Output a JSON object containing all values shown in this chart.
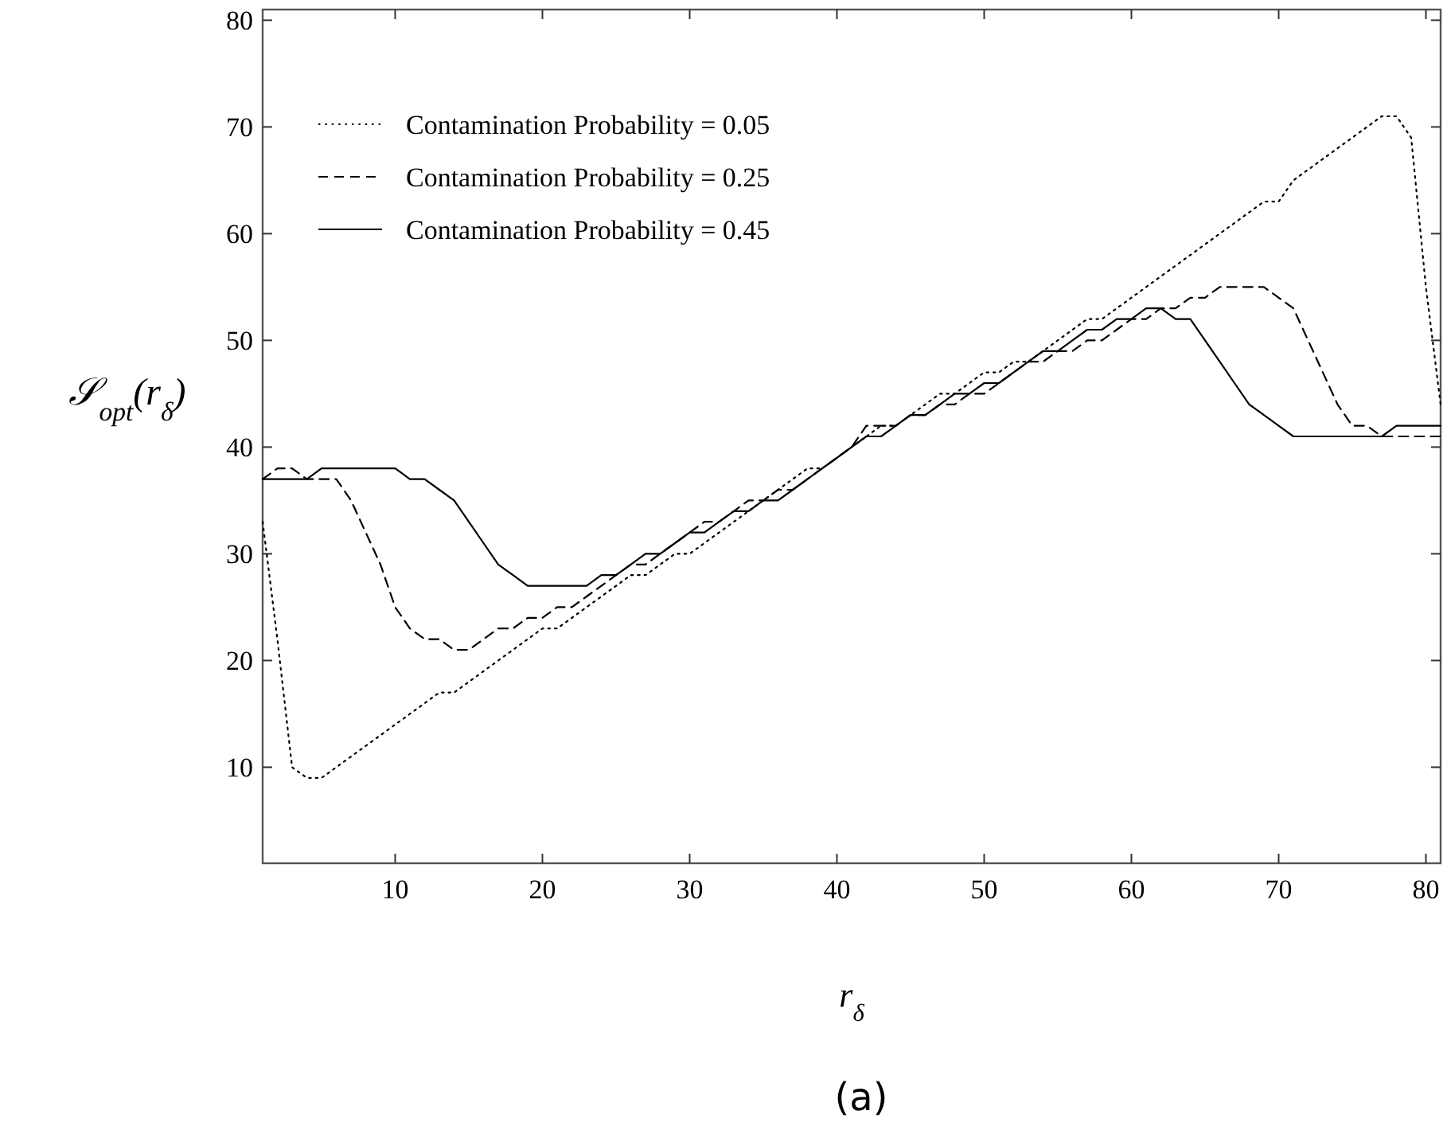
{
  "chart_data": {
    "type": "line",
    "xlabel": "r$_{δ}$",
    "ylabel": "𝒮$_{opt}$(r$_{δ}$)",
    "annotations": [
      "(a)"
    ],
    "x": [
      1,
      2,
      3,
      4,
      5,
      6,
      7,
      8,
      9,
      10,
      11,
      12,
      13,
      14,
      15,
      16,
      17,
      18,
      19,
      20,
      21,
      22,
      23,
      24,
      25,
      26,
      27,
      28,
      29,
      30,
      31,
      32,
      33,
      34,
      35,
      36,
      37,
      38,
      39,
      40,
      41,
      42,
      43,
      44,
      45,
      46,
      47,
      48,
      49,
      50,
      51,
      52,
      53,
      54,
      55,
      56,
      57,
      58,
      59,
      60,
      61,
      62,
      63,
      64,
      65,
      66,
      67,
      68,
      69,
      70,
      71,
      72,
      73,
      74,
      75,
      76,
      77,
      78,
      79,
      80,
      81
    ],
    "xlim": [
      1,
      81
    ],
    "xticks": [
      10,
      20,
      30,
      40,
      50,
      60,
      70,
      80
    ],
    "ylim": [
      1,
      81
    ],
    "yticks": [
      10,
      20,
      30,
      40,
      50,
      60,
      70,
      80
    ],
    "grid": false,
    "legend": "top left",
    "marker": "none",
    "series": [
      {
        "name": "Contamination Probability = 0.05",
        "color": "#000000",
        "line_style": "dotted",
        "values": [
          33,
          22,
          10,
          9,
          9,
          10,
          11,
          12,
          13,
          14,
          15,
          16,
          17,
          17,
          18,
          19,
          20,
          21,
          22,
          23,
          23,
          24,
          25,
          26,
          27,
          28,
          28,
          29,
          30,
          30,
          31,
          32,
          33,
          34,
          35,
          36,
          37,
          38,
          38,
          39,
          40,
          41,
          42,
          42,
          43,
          44,
          45,
          45,
          46,
          47,
          47,
          48,
          48,
          49,
          50,
          51,
          52,
          52,
          53,
          54,
          55,
          56,
          57,
          58,
          59,
          60,
          61,
          62,
          63,
          63,
          65,
          66,
          67,
          68,
          69,
          70,
          71,
          71,
          69,
          55,
          44
        ]
      },
      {
        "name": "Contamination Probability = 0.25",
        "color": "#000000",
        "line_style": "dashed",
        "values": [
          37,
          38,
          38,
          37,
          37,
          37,
          35,
          32,
          29,
          25,
          23,
          22,
          22,
          21,
          21,
          22,
          23,
          23,
          24,
          24,
          25,
          25,
          26,
          27,
          28,
          29,
          29,
          30,
          31,
          32,
          33,
          33,
          34,
          35,
          35,
          36,
          36,
          37,
          38,
          39,
          40,
          42,
          42,
          42,
          43,
          43,
          44,
          44,
          45,
          45,
          46,
          47,
          48,
          48,
          49,
          49,
          50,
          50,
          51,
          52,
          52,
          53,
          53,
          54,
          54,
          55,
          55,
          55,
          55,
          54,
          53,
          50,
          47,
          44,
          42,
          42,
          41,
          41,
          41,
          41,
          41
        ]
      },
      {
        "name": "Contamination Probability = 0.45",
        "color": "#000000",
        "line_style": "solid",
        "values": [
          37,
          37,
          37,
          37,
          38,
          38,
          38,
          38,
          38,
          38,
          37,
          37,
          36,
          35,
          33,
          31,
          29,
          28,
          27,
          27,
          27,
          27,
          27,
          28,
          28,
          29,
          30,
          30,
          31,
          32,
          32,
          33,
          34,
          34,
          35,
          35,
          36,
          37,
          38,
          39,
          40,
          41,
          41,
          42,
          43,
          43,
          44,
          45,
          45,
          46,
          46,
          47,
          48,
          49,
          49,
          50,
          51,
          51,
          52,
          52,
          53,
          53,
          52,
          52,
          50,
          48,
          46,
          44,
          43,
          42,
          41,
          41,
          41,
          41,
          41,
          41,
          41,
          42,
          42,
          42,
          42
        ]
      }
    ]
  }
}
